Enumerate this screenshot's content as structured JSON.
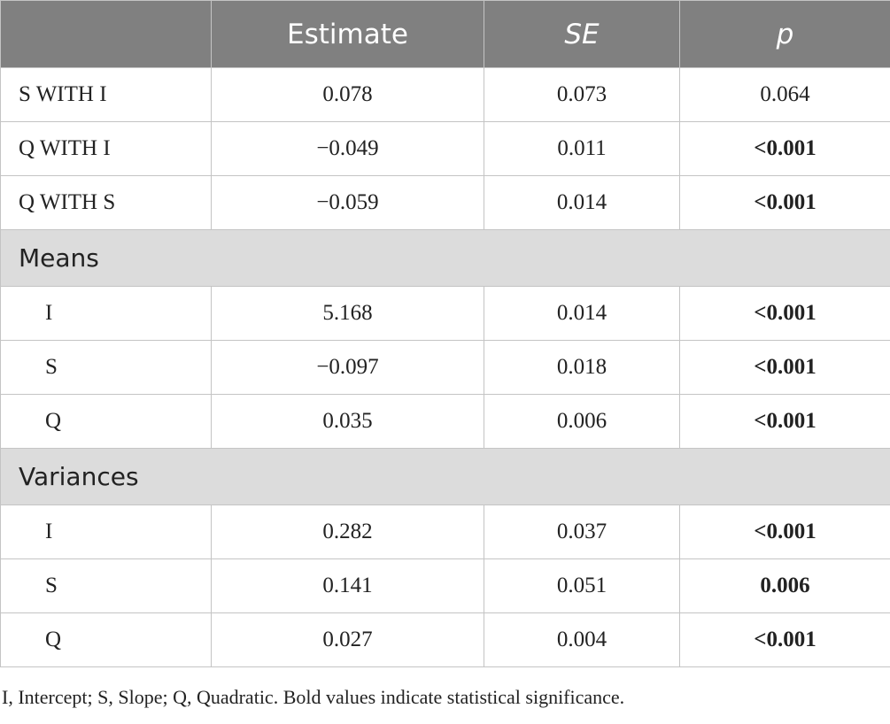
{
  "table": {
    "headers": [
      "",
      "Estimate",
      "SE",
      "p"
    ],
    "correlations": [
      {
        "label": "S WITH I",
        "estimate": "0.078",
        "se": "0.073",
        "p": "0.064",
        "bold": false
      },
      {
        "label": "Q WITH I",
        "estimate": "−0.049",
        "se": "0.011",
        "p": "<0.001",
        "bold": true
      },
      {
        "label": "Q WITH S",
        "estimate": "−0.059",
        "se": "0.014",
        "p": "<0.001",
        "bold": true
      }
    ],
    "means_title": "Means",
    "means": [
      {
        "label": "I",
        "estimate": "5.168",
        "se": "0.014",
        "p": "<0.001",
        "bold": true
      },
      {
        "label": "S",
        "estimate": "−0.097",
        "se": "0.018",
        "p": "<0.001",
        "bold": true
      },
      {
        "label": "Q",
        "estimate": "0.035",
        "se": "0.006",
        "p": "<0.001",
        "bold": true
      }
    ],
    "variances_title": "Variances",
    "variances": [
      {
        "label": "I",
        "estimate": "0.282",
        "se": "0.037",
        "p": "<0.001",
        "bold": true
      },
      {
        "label": "S",
        "estimate": "0.141",
        "se": "0.051",
        "p": "0.006",
        "bold": true
      },
      {
        "label": "Q",
        "estimate": "0.027",
        "se": "0.004",
        "p": "<0.001",
        "bold": true
      }
    ]
  },
  "footnote": "I, Intercept; S, Slope; Q, Quadratic. Bold values indicate statistical significance."
}
